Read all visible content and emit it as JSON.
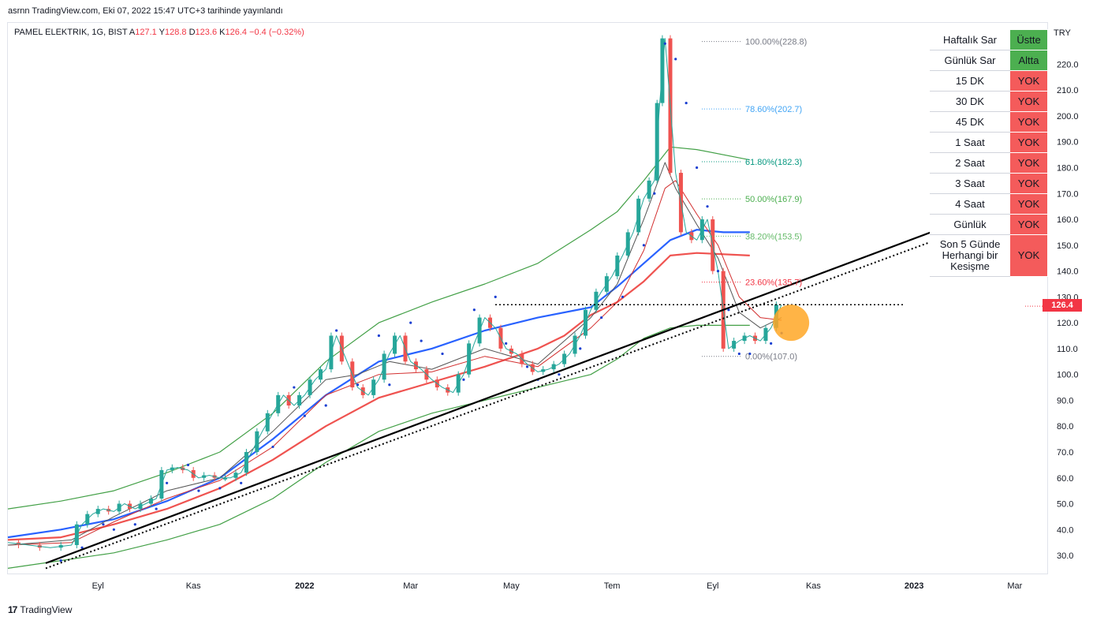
{
  "header": {
    "published": "asrnn TradingView.com, Eki 07, 2022 15:47 UTC+3 tarihinde yayınlandı"
  },
  "legend": {
    "symbol": "PAMEL ELEKTRIK, 1G, BIST",
    "a_label": "A",
    "a_value": "127.1",
    "y_label": "Y",
    "y_value": "128.8",
    "d_label": "D",
    "d_value": "123.6",
    "k_label": "K",
    "k_value": "126.4",
    "change": "−0.4 (−0.32%)"
  },
  "currency": "TRY",
  "last_price": "126.4",
  "signal_table": [
    {
      "label": "Haftalık Sar",
      "status": "Üstte",
      "color": "#4caf50"
    },
    {
      "label": "Günlük Sar",
      "status": "Altta",
      "color": "#4caf50"
    },
    {
      "label": "15 DK",
      "status": "YOK",
      "color": "#f45b5b"
    },
    {
      "label": "30 DK",
      "status": "YOK",
      "color": "#f45b5b"
    },
    {
      "label": "45 DK",
      "status": "YOK",
      "color": "#f45b5b"
    },
    {
      "label": "1 Saat",
      "status": "YOK",
      "color": "#f45b5b"
    },
    {
      "label": "2 Saat",
      "status": "YOK",
      "color": "#f45b5b"
    },
    {
      "label": "3 Saat",
      "status": "YOK",
      "color": "#f45b5b"
    },
    {
      "label": "4 Saat",
      "status": "YOK",
      "color": "#f45b5b"
    },
    {
      "label": "Günlük",
      "status": "YOK",
      "color": "#f45b5b"
    },
    {
      "label": "Son 5 Günde Herhangi bir Kesişme",
      "status": "YOK",
      "color": "#f45b5b"
    }
  ],
  "footer": {
    "brand": "TradingView",
    "logo": "17"
  },
  "chart_data": {
    "type": "line",
    "y_axis": {
      "ticks": [
        30,
        40,
        50,
        60,
        70,
        80,
        90,
        100,
        110,
        120,
        130,
        140,
        150,
        160,
        170,
        180,
        190,
        200,
        210,
        220
      ],
      "tick_labels": [
        "30.0",
        "40.0",
        "50.0",
        "60.0",
        "70.0",
        "80.0",
        "90.0",
        "100.0",
        "110.0",
        "120.0",
        "130.0",
        "140.0",
        "150.0",
        "160.0",
        "170.0",
        "180.0",
        "190.0",
        "200.0",
        "210.0",
        "220.0"
      ],
      "ylim": [
        23,
        236
      ],
      "position": "right"
    },
    "x_axis": {
      "tick_labels": [
        "Eyl",
        "Kas",
        "2022",
        "Mar",
        "May",
        "Tem",
        "Eyl",
        "Kas",
        "2023",
        "Mar"
      ],
      "tick_index": [
        17,
        35,
        56,
        76,
        95,
        114,
        133,
        152,
        171,
        190
      ]
    },
    "fibonacci": [
      {
        "label": "100.00%(228.8)",
        "price": 228.8,
        "color": "#787b86"
      },
      {
        "label": "78.60%(202.7)",
        "price": 202.7,
        "color": "#42a5f5"
      },
      {
        "label": "61.80%(182.3)",
        "price": 182.3,
        "color": "#089981"
      },
      {
        "label": "50.00%(167.9)",
        "price": 167.9,
        "color": "#4caf50"
      },
      {
        "label": "38.20%(153.5)",
        "price": 153.5,
        "color": "#66bb6a"
      },
      {
        "label": "23.60%(135.7)",
        "price": 135.7,
        "color": "#f23645"
      },
      {
        "label": "0.00%(107.0)",
        "price": 107.0,
        "color": "#787b86"
      }
    ],
    "price": [
      [
        0,
        35
      ],
      [
        4,
        34
      ],
      [
        8,
        33
      ],
      [
        12,
        34
      ],
      [
        14,
        42
      ],
      [
        16,
        46
      ],
      [
        18,
        48
      ],
      [
        20,
        47
      ],
      [
        22,
        50
      ],
      [
        24,
        48
      ],
      [
        26,
        50
      ],
      [
        28,
        52
      ],
      [
        30,
        63
      ],
      [
        32,
        64
      ],
      [
        34,
        63
      ],
      [
        36,
        60
      ],
      [
        38,
        61
      ],
      [
        40,
        60
      ],
      [
        42,
        60
      ],
      [
        44,
        62
      ],
      [
        46,
        70
      ],
      [
        48,
        78
      ],
      [
        50,
        85
      ],
      [
        52,
        92
      ],
      [
        54,
        88
      ],
      [
        56,
        92
      ],
      [
        58,
        98
      ],
      [
        60,
        102
      ],
      [
        62,
        115
      ],
      [
        64,
        105
      ],
      [
        66,
        95
      ],
      [
        68,
        92
      ],
      [
        70,
        98
      ],
      [
        72,
        108
      ],
      [
        74,
        115
      ],
      [
        76,
        105
      ],
      [
        78,
        102
      ],
      [
        80,
        98
      ],
      [
        82,
        95
      ],
      [
        84,
        93
      ],
      [
        86,
        100
      ],
      [
        88,
        112
      ],
      [
        90,
        122
      ],
      [
        92,
        118
      ],
      [
        94,
        110
      ],
      [
        96,
        108
      ],
      [
        98,
        104
      ],
      [
        100,
        101
      ],
      [
        102,
        102
      ],
      [
        104,
        104
      ],
      [
        106,
        108
      ],
      [
        108,
        115
      ],
      [
        110,
        125
      ],
      [
        112,
        132
      ],
      [
        114,
        138
      ],
      [
        116,
        146
      ],
      [
        118,
        155
      ],
      [
        120,
        168
      ],
      [
        122,
        175
      ],
      [
        123,
        205
      ],
      [
        124,
        230
      ],
      [
        126,
        178
      ],
      [
        128,
        155
      ],
      [
        130,
        152
      ],
      [
        132,
        160
      ],
      [
        134,
        140
      ],
      [
        136,
        110
      ],
      [
        138,
        113
      ],
      [
        140,
        115
      ],
      [
        142,
        113
      ],
      [
        144,
        118
      ],
      [
        146,
        127
      ]
    ],
    "sma_blue": [
      [
        0,
        37
      ],
      [
        10,
        40
      ],
      [
        20,
        44
      ],
      [
        30,
        51
      ],
      [
        40,
        60
      ],
      [
        50,
        75
      ],
      [
        60,
        92
      ],
      [
        70,
        105
      ],
      [
        80,
        110
      ],
      [
        90,
        117
      ],
      [
        100,
        122
      ],
      [
        110,
        126
      ],
      [
        115,
        134
      ],
      [
        120,
        143
      ],
      [
        125,
        152
      ],
      [
        130,
        156
      ],
      [
        135,
        155
      ],
      [
        140,
        155
      ]
    ],
    "sma_red": [
      [
        0,
        36
      ],
      [
        10,
        37
      ],
      [
        20,
        42
      ],
      [
        30,
        48
      ],
      [
        40,
        56
      ],
      [
        50,
        67
      ],
      [
        60,
        80
      ],
      [
        70,
        91
      ],
      [
        80,
        97
      ],
      [
        90,
        103
      ],
      [
        100,
        110
      ],
      [
        105,
        115
      ],
      [
        110,
        123
      ],
      [
        115,
        128
      ],
      [
        120,
        136
      ],
      [
        125,
        146
      ],
      [
        130,
        147
      ],
      [
        140,
        146
      ]
    ],
    "env_upper": [
      [
        0,
        48
      ],
      [
        10,
        51
      ],
      [
        20,
        55
      ],
      [
        30,
        62
      ],
      [
        40,
        70
      ],
      [
        50,
        85
      ],
      [
        60,
        105
      ],
      [
        70,
        120
      ],
      [
        80,
        128
      ],
      [
        90,
        135
      ],
      [
        100,
        143
      ],
      [
        110,
        156
      ],
      [
        115,
        163
      ],
      [
        120,
        175
      ],
      [
        125,
        188
      ],
      [
        130,
        187
      ],
      [
        140,
        183
      ]
    ],
    "env_lower": [
      [
        0,
        25
      ],
      [
        10,
        28
      ],
      [
        20,
        31
      ],
      [
        30,
        36
      ],
      [
        40,
        42
      ],
      [
        50,
        52
      ],
      [
        60,
        66
      ],
      [
        70,
        78
      ],
      [
        80,
        85
      ],
      [
        90,
        90
      ],
      [
        100,
        95
      ],
      [
        110,
        100
      ],
      [
        115,
        106
      ],
      [
        120,
        114
      ],
      [
        125,
        118
      ],
      [
        130,
        119
      ],
      [
        140,
        119
      ]
    ],
    "fast_ema": [
      [
        0,
        34
      ],
      [
        12,
        36
      ],
      [
        20,
        45
      ],
      [
        30,
        55
      ],
      [
        40,
        60
      ],
      [
        50,
        78
      ],
      [
        60,
        98
      ],
      [
        66,
        100
      ],
      [
        72,
        105
      ],
      [
        80,
        102
      ],
      [
        90,
        110
      ],
      [
        100,
        104
      ],
      [
        110,
        122
      ],
      [
        115,
        135
      ],
      [
        120,
        160
      ],
      [
        124,
        182
      ],
      [
        126,
        172
      ],
      [
        130,
        158
      ],
      [
        134,
        145
      ],
      [
        138,
        124
      ],
      [
        142,
        118
      ],
      [
        146,
        122
      ]
    ],
    "slow_ema": [
      [
        0,
        34
      ],
      [
        12,
        35
      ],
      [
        20,
        43
      ],
      [
        30,
        52
      ],
      [
        40,
        59
      ],
      [
        50,
        72
      ],
      [
        60,
        92
      ],
      [
        70,
        100
      ],
      [
        80,
        101
      ],
      [
        90,
        107
      ],
      [
        100,
        103
      ],
      [
        110,
        118
      ],
      [
        115,
        128
      ],
      [
        120,
        148
      ],
      [
        124,
        172
      ],
      [
        126,
        175
      ],
      [
        130,
        162
      ],
      [
        134,
        150
      ],
      [
        138,
        130
      ],
      [
        142,
        122
      ],
      [
        146,
        121
      ]
    ],
    "parabolic_sar": [
      [
        10,
        28
      ],
      [
        14,
        33
      ],
      [
        18,
        42
      ],
      [
        20,
        40
      ],
      [
        24,
        42
      ],
      [
        28,
        48
      ],
      [
        30,
        58
      ],
      [
        34,
        65
      ],
      [
        36,
        55
      ],
      [
        40,
        56
      ],
      [
        44,
        58
      ],
      [
        50,
        72
      ],
      [
        54,
        95
      ],
      [
        56,
        84
      ],
      [
        60,
        88
      ],
      [
        62,
        117
      ],
      [
        66,
        96
      ],
      [
        70,
        115
      ],
      [
        72,
        96
      ],
      [
        76,
        120
      ],
      [
        78,
        113
      ],
      [
        82,
        108
      ],
      [
        86,
        98
      ],
      [
        88,
        125
      ],
      [
        92,
        130
      ],
      [
        94,
        112
      ],
      [
        98,
        103
      ],
      [
        100,
        98
      ],
      [
        104,
        100
      ],
      [
        108,
        110
      ],
      [
        112,
        122
      ],
      [
        116,
        130
      ],
      [
        120,
        150
      ],
      [
        122,
        170
      ],
      [
        124,
        228
      ],
      [
        126,
        222
      ],
      [
        128,
        205
      ],
      [
        130,
        180
      ],
      [
        132,
        165
      ],
      [
        134,
        140
      ],
      [
        136,
        125
      ],
      [
        138,
        108
      ],
      [
        140,
        108
      ],
      [
        144,
        112
      ],
      [
        146,
        116
      ]
    ],
    "trendline": {
      "from": [
        3,
        27
      ],
      "to": [
        1312,
        170
      ]
    },
    "trendline_dotted": {
      "from": [
        3,
        25
      ],
      "to": [
        1320,
        167
      ]
    },
    "resistance_level": 127,
    "highlight_circle": {
      "center_index": 146,
      "price": 120
    },
    "title": "",
    "xlabel": "",
    "ylabel": "",
    "legend": "none"
  }
}
